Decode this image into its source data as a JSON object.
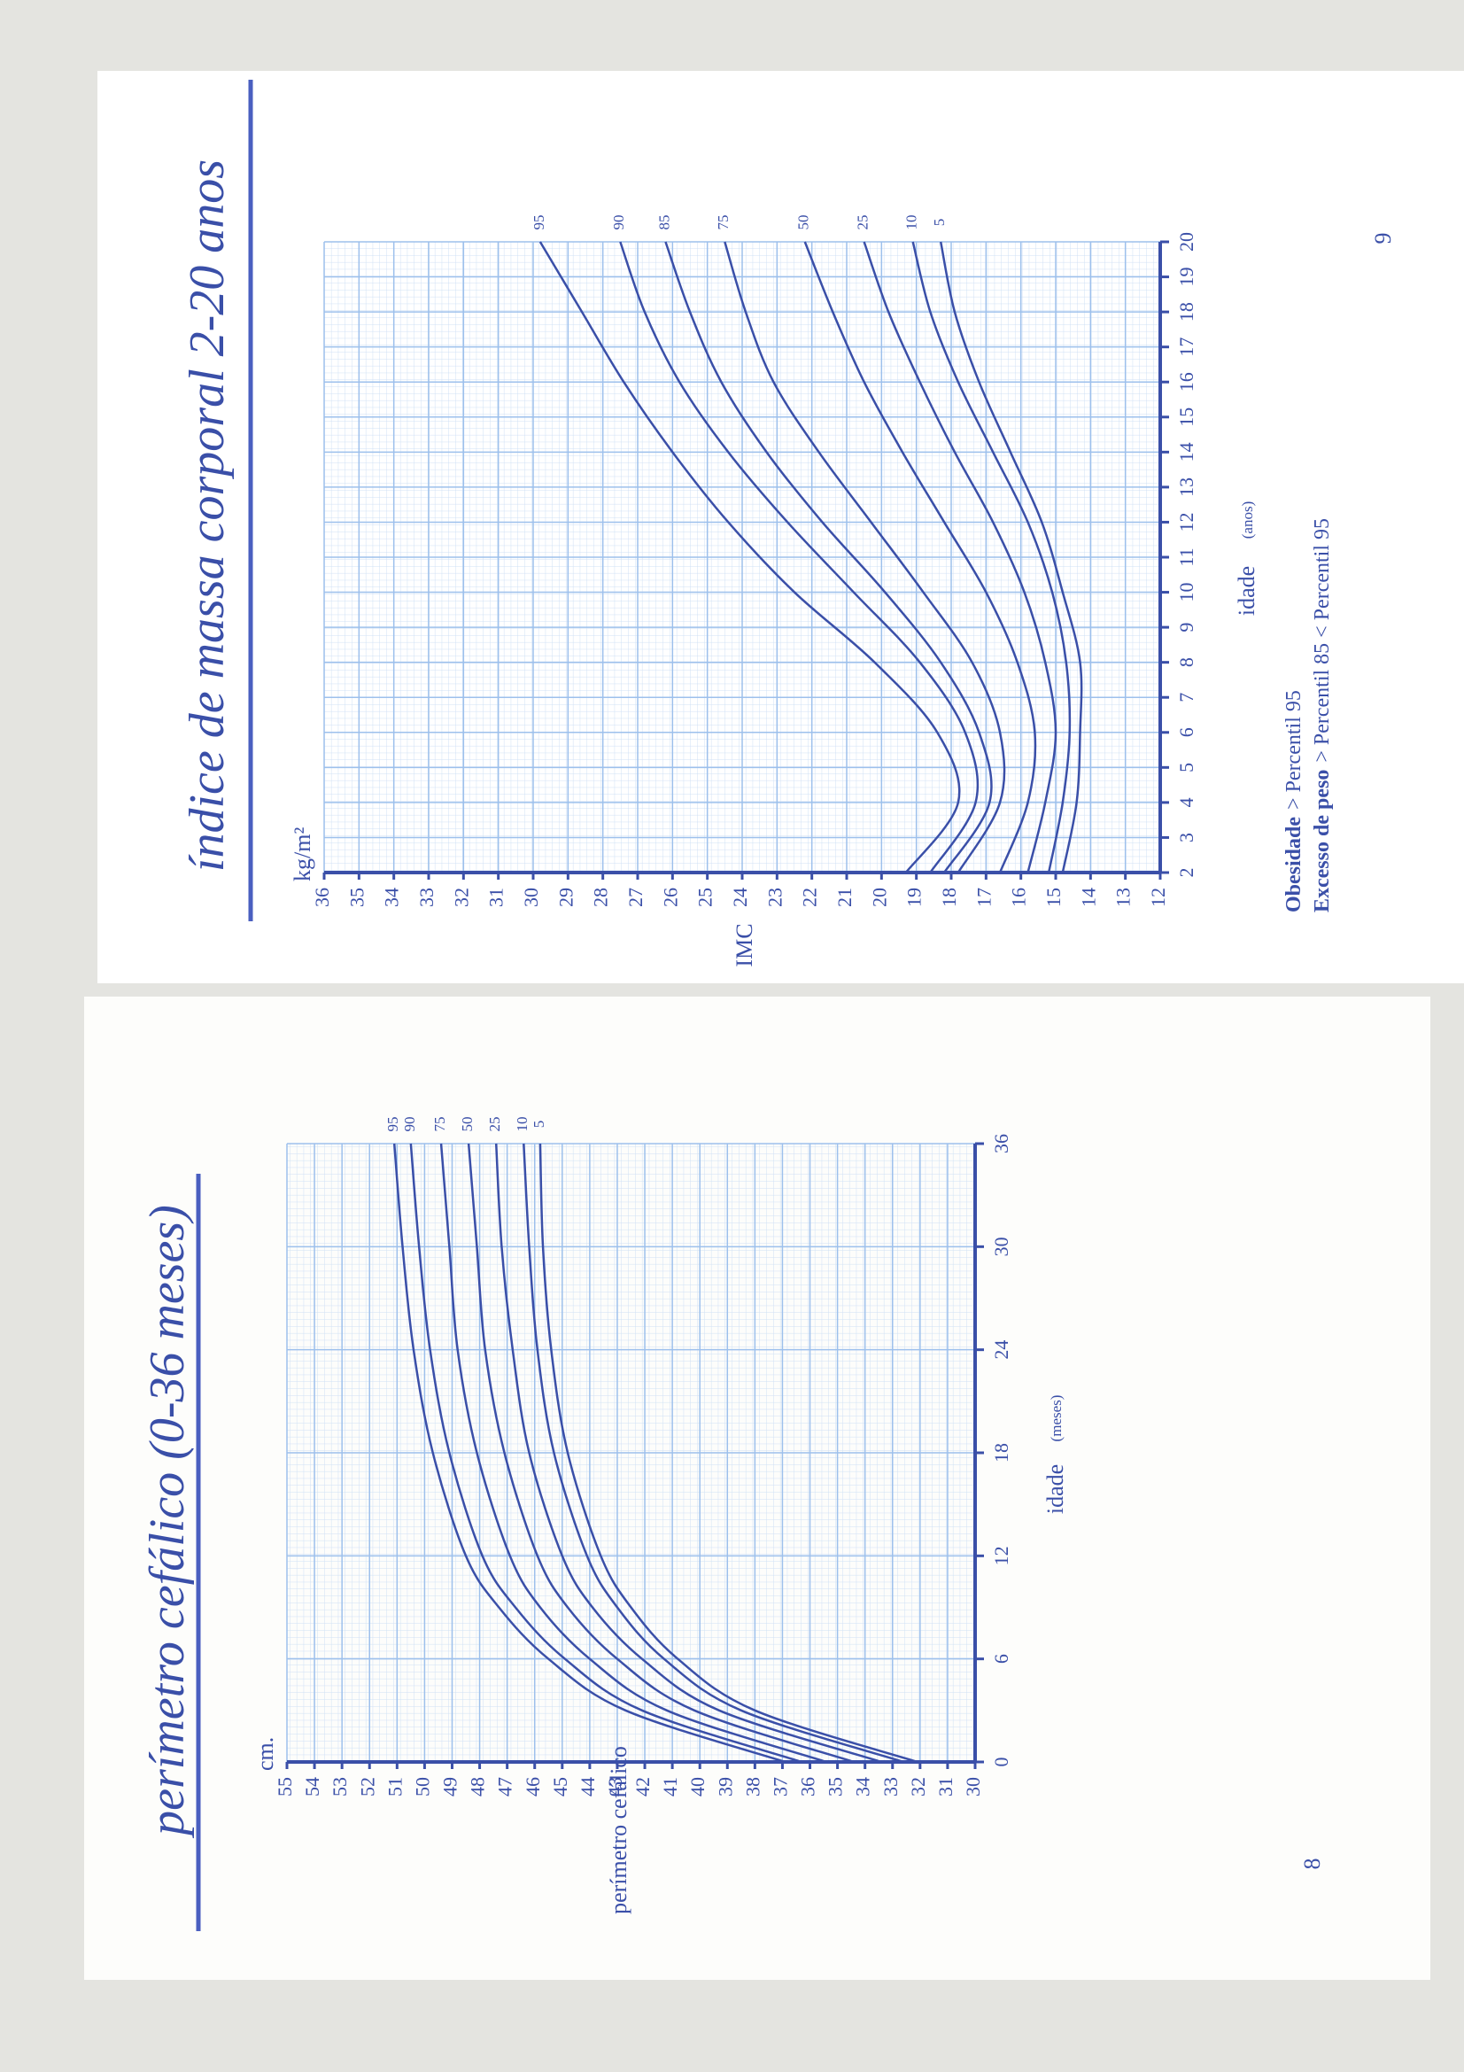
{
  "chart_data": [
    {
      "type": "line",
      "title": "índice de massa corporal 2-20 anos",
      "page_number": "9",
      "x_label": "idade",
      "x_unit": "(anos)",
      "y_label": "IMC",
      "y_unit": "kg/m²",
      "x": [
        2,
        4,
        6,
        8,
        10,
        12,
        14,
        16,
        18,
        20
      ],
      "xlim": [
        2,
        20
      ],
      "xticks": [
        2,
        3,
        4,
        5,
        6,
        7,
        8,
        9,
        10,
        11,
        12,
        13,
        14,
        15,
        16,
        17,
        18,
        19,
        20
      ],
      "ylim": [
        12,
        36
      ],
      "yticks": [
        12,
        13,
        14,
        15,
        16,
        17,
        18,
        19,
        20,
        21,
        22,
        23,
        24,
        25,
        26,
        27,
        28,
        29,
        30,
        31,
        32,
        33,
        34,
        35,
        36
      ],
      "grid": true,
      "series": [
        {
          "name": "95",
          "color": "#3a4fa8",
          "values": [
            19.3,
            17.8,
            18.4,
            20.2,
            22.5,
            24.4,
            26.0,
            27.4,
            28.6,
            29.8
          ]
        },
        {
          "name": "90",
          "color": "#3a4fa8",
          "values": [
            18.6,
            17.3,
            17.6,
            18.9,
            20.8,
            22.7,
            24.4,
            25.8,
            26.8,
            27.5
          ]
        },
        {
          "name": "85",
          "color": "#3a4fa8",
          "values": [
            18.2,
            16.9,
            17.2,
            18.3,
            19.9,
            21.7,
            23.3,
            24.6,
            25.5,
            26.2
          ]
        },
        {
          "name": "75",
          "color": "#3a4fa8",
          "values": [
            17.8,
            16.6,
            16.6,
            17.4,
            18.8,
            20.3,
            21.8,
            23.1,
            23.9,
            24.5
          ]
        },
        {
          "name": "50",
          "color": "#3a4fa8",
          "values": [
            16.6,
            15.8,
            15.6,
            16.1,
            17.0,
            18.2,
            19.4,
            20.5,
            21.4,
            22.2
          ]
        },
        {
          "name": "25",
          "color": "#3a4fa8",
          "values": [
            15.8,
            15.3,
            15.0,
            15.3,
            15.9,
            16.8,
            17.9,
            18.9,
            19.8,
            20.5
          ]
        },
        {
          "name": "10",
          "color": "#3a4fa8",
          "values": [
            15.2,
            14.8,
            14.6,
            14.7,
            15.1,
            15.8,
            16.8,
            17.8,
            18.6,
            19.1
          ]
        },
        {
          "name": "5",
          "color": "#3a4fa8",
          "values": [
            14.8,
            14.4,
            14.3,
            14.3,
            14.8,
            15.4,
            16.3,
            17.2,
            17.9,
            18.3
          ]
        }
      ],
      "notes": [
        {
          "label": "Obesidade",
          "text": "> Percentil 95"
        },
        {
          "label": "Excesso de peso",
          "text": "> Percentil 85 < Percentil 95"
        }
      ]
    },
    {
      "type": "line",
      "title": "perímetro cefálico (0-36 meses)",
      "page_number": "8",
      "x_label": "idade",
      "x_unit": "(meses)",
      "y_label": "perímetro cefálico",
      "y_unit": "cm.",
      "x": [
        0,
        3,
        6,
        9,
        12,
        18,
        24,
        30,
        36
      ],
      "xlim": [
        0,
        36
      ],
      "xticks": [
        0,
        6,
        12,
        18,
        24,
        30,
        36
      ],
      "ylim": [
        30,
        55
      ],
      "yticks": [
        30,
        31,
        32,
        33,
        34,
        35,
        36,
        37,
        38,
        39,
        40,
        41,
        42,
        43,
        44,
        45,
        46,
        47,
        48,
        49,
        50,
        51,
        52,
        53,
        54,
        55
      ],
      "grid": true,
      "series": [
        {
          "name": "95",
          "color": "#3a4fa8",
          "values": [
            36.9,
            42.7,
            45.5,
            47.3,
            48.5,
            49.7,
            50.4,
            50.8,
            51.1
          ]
        },
        {
          "name": "90",
          "color": "#3a4fa8",
          "values": [
            36.3,
            42.1,
            44.9,
            46.7,
            47.9,
            49.1,
            49.8,
            50.2,
            50.5
          ]
        },
        {
          "name": "75",
          "color": "#3a4fa8",
          "values": [
            35.4,
            41.2,
            44.0,
            45.8,
            46.9,
            48.1,
            48.8,
            49.1,
            49.4
          ]
        },
        {
          "name": "50",
          "color": "#3a4fa8",
          "values": [
            34.4,
            40.2,
            43.0,
            44.8,
            45.9,
            47.1,
            47.8,
            48.1,
            48.4
          ]
        },
        {
          "name": "25",
          "color": "#3a4fa8",
          "values": [
            33.4,
            39.3,
            42.1,
            43.9,
            45.0,
            46.2,
            46.8,
            47.2,
            47.4
          ]
        },
        {
          "name": "10",
          "color": "#3a4fa8",
          "values": [
            32.6,
            38.5,
            41.3,
            43.0,
            44.1,
            45.3,
            45.9,
            46.2,
            46.4
          ]
        },
        {
          "name": "5",
          "color": "#3a4fa8",
          "values": [
            32.1,
            38.0,
            40.8,
            42.5,
            43.6,
            44.8,
            45.4,
            45.7,
            45.8
          ]
        }
      ]
    }
  ]
}
